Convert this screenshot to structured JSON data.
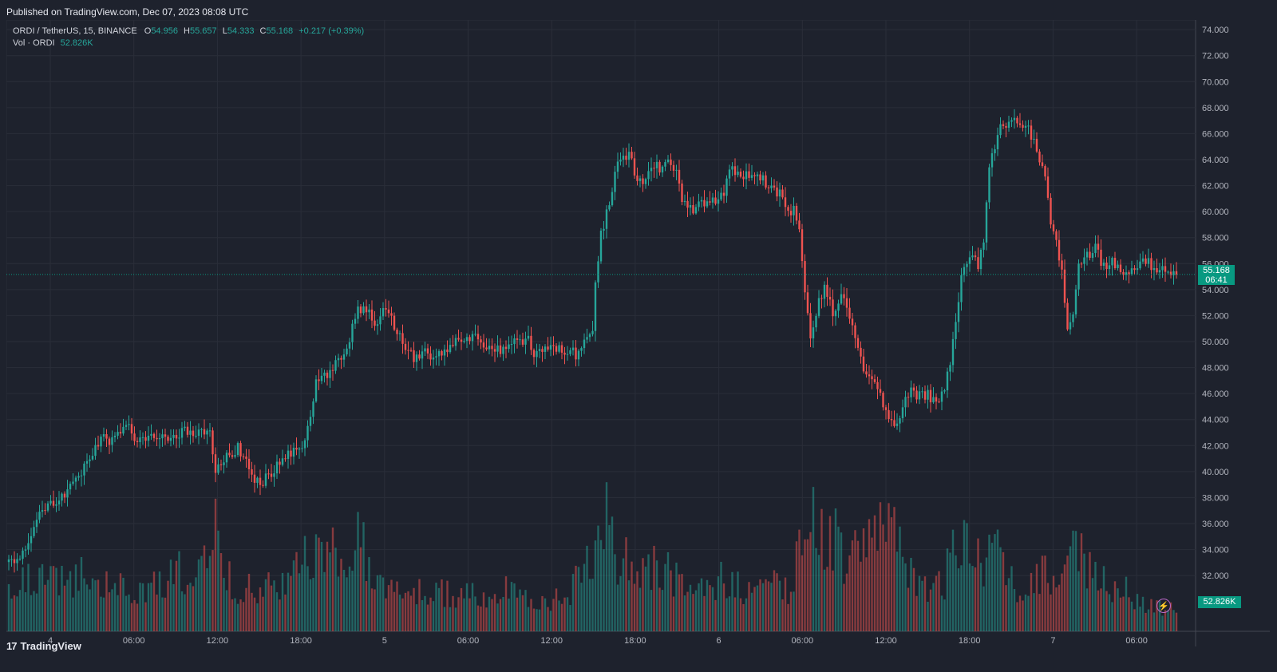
{
  "header": {
    "published": "Published on TradingView.com, Dec 07, 2023 08:08 UTC"
  },
  "legend": {
    "symbol": "ORDI / TetherUS, 15, BINANCE",
    "o_label": "O",
    "o": "54.956",
    "h_label": "H",
    "h": "55.657",
    "l_label": "L",
    "l": "54.333",
    "c_label": "C",
    "c": "55.168",
    "change": "+0.217 (+0.39%)",
    "vol_label": "Vol · ORDI",
    "vol": "52.826K"
  },
  "price_badge": {
    "price": "55.168",
    "countdown": "06:41"
  },
  "volume_badge": "52.826K",
  "footer": {
    "brand": "TradingView",
    "logo_icon": "tradingview-logo-icon"
  },
  "colors": {
    "up": "#26a69a",
    "down": "#ef5350",
    "background": "#1e222d",
    "grid": "#2a2e39",
    "last_price": "#089981",
    "bolt": "#ba68c8"
  },
  "chart_data": {
    "type": "candlestick",
    "interval": "15m",
    "ylim": [
      29,
      74.5
    ],
    "y_ticks": [
      "32.000",
      "34.000",
      "36.000",
      "38.000",
      "40.000",
      "42.000",
      "44.000",
      "46.000",
      "48.000",
      "50.000",
      "52.000",
      "54.000",
      "56.000",
      "58.000",
      "60.000",
      "62.000",
      "64.000",
      "66.000",
      "68.000",
      "70.000",
      "72.000",
      "74.000"
    ],
    "x_ticks": [
      "4",
      "06:00",
      "12:00",
      "18:00",
      "5",
      "06:00",
      "12:00",
      "18:00",
      "6",
      "06:00",
      "12:00",
      "18:00",
      "7",
      "06:00"
    ],
    "last_price": 55.168,
    "anchors": [
      [
        0,
        33.0
      ],
      [
        3,
        33.3
      ],
      [
        6,
        34.2
      ],
      [
        9,
        36.0
      ],
      [
        12,
        37.2
      ],
      [
        15,
        37.6
      ],
      [
        18,
        37.8
      ],
      [
        21,
        38.4
      ],
      [
        24,
        39.2
      ],
      [
        27,
        40.4
      ],
      [
        30,
        41.5
      ],
      [
        33,
        42.7
      ],
      [
        36,
        42.3
      ],
      [
        39,
        43.1
      ],
      [
        42,
        43.9
      ],
      [
        45,
        42.6
      ],
      [
        48,
        42.4
      ],
      [
        51,
        42.7
      ],
      [
        54,
        42.8
      ],
      [
        57,
        42.5
      ],
      [
        60,
        42.8
      ],
      [
        63,
        43.1
      ],
      [
        66,
        42.9
      ],
      [
        69,
        43.3
      ],
      [
        72,
        43.0
      ],
      [
        74,
        39.8
      ],
      [
        76,
        40.8
      ],
      [
        79,
        41.4
      ],
      [
        82,
        41.8
      ],
      [
        85,
        41.0
      ],
      [
        88,
        39.2
      ],
      [
        91,
        39.3
      ],
      [
        94,
        39.8
      ],
      [
        97,
        40.6
      ],
      [
        100,
        41.2
      ],
      [
        103,
        41.5
      ],
      [
        106,
        42.5
      ],
      [
        108,
        44.2
      ],
      [
        110,
        46.7
      ],
      [
        113,
        47.4
      ],
      [
        116,
        47.9
      ],
      [
        119,
        48.8
      ],
      [
        122,
        50.3
      ],
      [
        125,
        52.5
      ],
      [
        128,
        52.4
      ],
      [
        131,
        51.4
      ],
      [
        134,
        52.3
      ],
      [
        137,
        51.6
      ],
      [
        140,
        50.6
      ],
      [
        143,
        49.1
      ],
      [
        146,
        48.6
      ],
      [
        149,
        49.2
      ],
      [
        152,
        48.9
      ],
      [
        155,
        49.2
      ],
      [
        158,
        49.5
      ],
      [
        161,
        50.1
      ],
      [
        164,
        50.2
      ],
      [
        167,
        50.6
      ],
      [
        170,
        49.4
      ],
      [
        173,
        49.2
      ],
      [
        176,
        49.3
      ],
      [
        179,
        49.9
      ],
      [
        182,
        49.8
      ],
      [
        185,
        50.4
      ],
      [
        188,
        49.2
      ],
      [
        191,
        49.4
      ],
      [
        194,
        49.9
      ],
      [
        197,
        49.5
      ],
      [
        200,
        49.3
      ],
      [
        203,
        49.0
      ],
      [
        206,
        49.7
      ],
      [
        209,
        50.5
      ],
      [
        210,
        54.8
      ],
      [
        212,
        58.1
      ],
      [
        214,
        60.1
      ],
      [
        216,
        61.2
      ],
      [
        218,
        64.2
      ],
      [
        220,
        63.9
      ],
      [
        222,
        64.6
      ],
      [
        224,
        62.8
      ],
      [
        227,
        62.5
      ],
      [
        230,
        63.8
      ],
      [
        233,
        63.2
      ],
      [
        236,
        63.9
      ],
      [
        239,
        62.9
      ],
      [
        241,
        60.9
      ],
      [
        244,
        60.1
      ],
      [
        247,
        60.5
      ],
      [
        250,
        60.8
      ],
      [
        253,
        60.9
      ],
      [
        256,
        61.5
      ],
      [
        258,
        63.5
      ],
      [
        261,
        62.7
      ],
      [
        264,
        62.9
      ],
      [
        267,
        62.8
      ],
      [
        270,
        62.4
      ],
      [
        273,
        61.9
      ],
      [
        276,
        61.4
      ],
      [
        279,
        60.3
      ],
      [
        281,
        60.0
      ],
      [
        283,
        58.4
      ],
      [
        285,
        54.2
      ],
      [
        287,
        50.5
      ],
      [
        289,
        52.4
      ],
      [
        292,
        54.1
      ],
      [
        295,
        52.2
      ],
      [
        298,
        53.6
      ],
      [
        301,
        52.0
      ],
      [
        303,
        50.0
      ],
      [
        306,
        47.8
      ],
      [
        309,
        46.9
      ],
      [
        312,
        45.8
      ],
      [
        315,
        44.2
      ],
      [
        317,
        43.2
      ],
      [
        320,
        44.9
      ],
      [
        323,
        46.3
      ],
      [
        326,
        45.8
      ],
      [
        329,
        45.9
      ],
      [
        332,
        45.4
      ],
      [
        335,
        46.6
      ],
      [
        337,
        48.4
      ],
      [
        339,
        51.6
      ],
      [
        341,
        54.7
      ],
      [
        344,
        56.8
      ],
      [
        347,
        55.8
      ],
      [
        349,
        57.8
      ],
      [
        351,
        63.3
      ],
      [
        353,
        64.8
      ],
      [
        355,
        66.7
      ],
      [
        358,
        66.9
      ],
      [
        361,
        67.0
      ],
      [
        364,
        66.6
      ],
      [
        367,
        65.6
      ],
      [
        369,
        63.8
      ],
      [
        371,
        62.9
      ],
      [
        373,
        59.4
      ],
      [
        375,
        57.4
      ],
      [
        377,
        55.4
      ],
      [
        379,
        50.7
      ],
      [
        381,
        52.3
      ],
      [
        383,
        55.8
      ],
      [
        386,
        56.6
      ],
      [
        389,
        57.1
      ],
      [
        392,
        55.8
      ],
      [
        395,
        56.3
      ],
      [
        398,
        55.3
      ],
      [
        401,
        55.0
      ],
      [
        404,
        55.8
      ],
      [
        407,
        56.2
      ],
      [
        410,
        55.6
      ],
      [
        413,
        55.9
      ],
      [
        416,
        55.5
      ],
      [
        418,
        55.2
      ]
    ],
    "volume_anchors": [
      [
        0,
        3.6
      ],
      [
        10,
        5.3
      ],
      [
        20,
        4.8
      ],
      [
        30,
        5.2
      ],
      [
        40,
        4.1
      ],
      [
        50,
        4.0
      ],
      [
        60,
        5.3
      ],
      [
        72,
        6.3
      ],
      [
        74,
        9.1
      ],
      [
        80,
        4.2
      ],
      [
        90,
        4.0
      ],
      [
        100,
        4.2
      ],
      [
        108,
        7.9
      ],
      [
        113,
        6.4
      ],
      [
        122,
        8.3
      ],
      [
        125,
        9.6
      ],
      [
        130,
        5.1
      ],
      [
        140,
        3.6
      ],
      [
        150,
        3.9
      ],
      [
        160,
        3.3
      ],
      [
        170,
        3.4
      ],
      [
        180,
        3.9
      ],
      [
        190,
        3.2
      ],
      [
        200,
        3.0
      ],
      [
        205,
        5.7
      ],
      [
        209,
        6.2
      ],
      [
        210,
        7.4
      ],
      [
        212,
        10.7
      ],
      [
        214,
        11.2
      ],
      [
        216,
        10.3
      ],
      [
        218,
        5.5
      ],
      [
        222,
        7.7
      ],
      [
        227,
        6.3
      ],
      [
        230,
        5.8
      ],
      [
        235,
        5.7
      ],
      [
        240,
        4.4
      ],
      [
        245,
        3.6
      ],
      [
        250,
        4.2
      ],
      [
        255,
        4.7
      ],
      [
        260,
        4.0
      ],
      [
        265,
        4.0
      ],
      [
        270,
        4.1
      ],
      [
        275,
        4.2
      ],
      [
        280,
        3.5
      ],
      [
        283,
        8.1
      ],
      [
        285,
        12.0
      ],
      [
        287,
        11.5
      ],
      [
        290,
        9.2
      ],
      [
        295,
        8.7
      ],
      [
        300,
        6.6
      ],
      [
        303,
        6.9
      ],
      [
        306,
        7.7
      ],
      [
        309,
        9.5
      ],
      [
        312,
        11.3
      ],
      [
        314,
        12.6
      ],
      [
        316,
        9.3
      ],
      [
        318,
        11.4
      ],
      [
        322,
        6.0
      ],
      [
        326,
        4.4
      ],
      [
        330,
        3.9
      ],
      [
        335,
        4.5
      ],
      [
        337,
        7.3
      ],
      [
        339,
        8.5
      ],
      [
        341,
        9.3
      ],
      [
        343,
        9.4
      ],
      [
        345,
        8.5
      ],
      [
        349,
        6.7
      ],
      [
        351,
        7.2
      ],
      [
        353,
        9.4
      ],
      [
        356,
        6.1
      ],
      [
        360,
        4.3
      ],
      [
        364,
        3.5
      ],
      [
        368,
        4.7
      ],
      [
        372,
        5.5
      ],
      [
        375,
        4.6
      ],
      [
        377,
        8.6
      ],
      [
        379,
        9.0
      ],
      [
        382,
        7.0
      ],
      [
        385,
        6.6
      ],
      [
        390,
        5.1
      ],
      [
        395,
        3.6
      ],
      [
        400,
        3.8
      ],
      [
        405,
        2.6
      ],
      [
        410,
        2.4
      ],
      [
        415,
        2.3
      ],
      [
        418,
        2.5
      ]
    ]
  }
}
